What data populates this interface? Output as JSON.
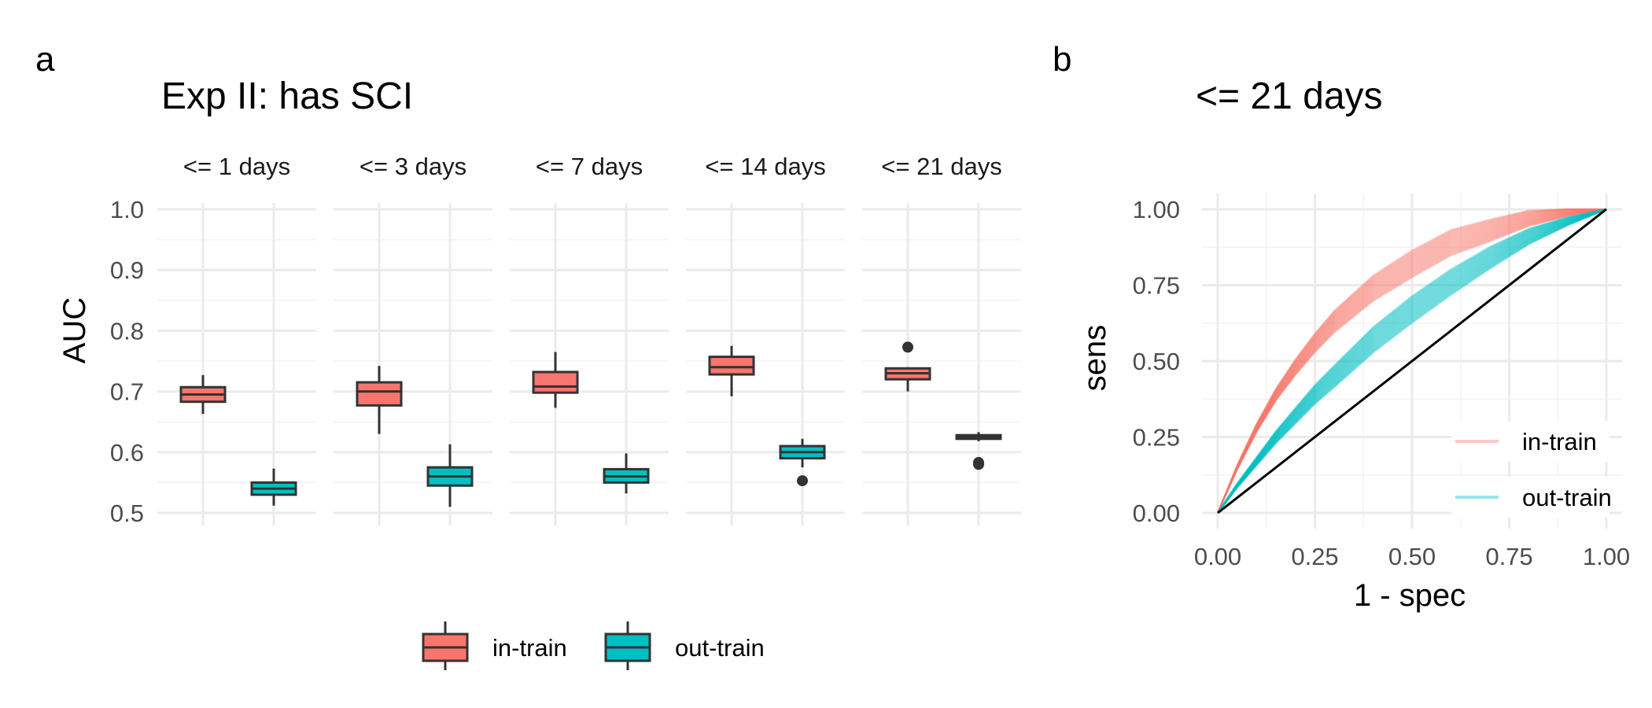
{
  "panel_a": {
    "tag": "a",
    "title": "Exp II: has SCI",
    "ylabel": "AUC",
    "yticks": [
      "0.5",
      "0.6",
      "0.7",
      "0.8",
      "0.9",
      "1.0"
    ],
    "legend": {
      "items": [
        {
          "label": "in-train",
          "color": "#F8766D"
        },
        {
          "label": "out-train",
          "color": "#00BFC4"
        }
      ]
    }
  },
  "panel_b": {
    "tag": "b",
    "title": "<= 21 days",
    "xlabel": "1 - spec",
    "ylabel": "sens",
    "xticks": [
      "0.00",
      "0.25",
      "0.50",
      "0.75",
      "1.00"
    ],
    "yticks": [
      "0.00",
      "0.25",
      "0.50",
      "0.75",
      "1.00"
    ],
    "legend": {
      "items": [
        {
          "label": "in-train",
          "color": "#F8766D"
        },
        {
          "label": "out-train",
          "color": "#00BFC4"
        }
      ]
    }
  },
  "chart_data": [
    {
      "type": "box",
      "title": "Exp II: has SCI",
      "xlabel": "",
      "ylabel": "AUC",
      "ylim": [
        0.5,
        1.0
      ],
      "facets": [
        "<= 1 days",
        "<= 3 days",
        "<= 7 days",
        "<= 14 days",
        "<= 21 days"
      ],
      "series": [
        {
          "name": "in-train",
          "color": "#F8766D",
          "boxes": [
            {
              "facet": "<= 1 days",
              "whisker_low": 0.663,
              "q1": 0.683,
              "median": 0.695,
              "q3": 0.707,
              "whisker_high": 0.727,
              "outliers": []
            },
            {
              "facet": "<= 3 days",
              "whisker_low": 0.63,
              "q1": 0.677,
              "median": 0.7,
              "q3": 0.715,
              "whisker_high": 0.742,
              "outliers": []
            },
            {
              "facet": "<= 7 days",
              "whisker_low": 0.673,
              "q1": 0.698,
              "median": 0.708,
              "q3": 0.732,
              "whisker_high": 0.765,
              "outliers": []
            },
            {
              "facet": "<= 14 days",
              "whisker_low": 0.692,
              "q1": 0.728,
              "median": 0.74,
              "q3": 0.757,
              "whisker_high": 0.775,
              "outliers": []
            },
            {
              "facet": "<= 21 days",
              "whisker_low": 0.7,
              "q1": 0.72,
              "median": 0.73,
              "q3": 0.738,
              "whisker_high": 0.74,
              "outliers": [
                0.773
              ]
            }
          ]
        },
        {
          "name": "out-train",
          "color": "#00BFC4",
          "boxes": [
            {
              "facet": "<= 1 days",
              "whisker_low": 0.512,
              "q1": 0.53,
              "median": 0.54,
              "q3": 0.55,
              "whisker_high": 0.573,
              "outliers": []
            },
            {
              "facet": "<= 3 days",
              "whisker_low": 0.51,
              "q1": 0.545,
              "median": 0.56,
              "q3": 0.575,
              "whisker_high": 0.613,
              "outliers": []
            },
            {
              "facet": "<= 7 days",
              "whisker_low": 0.532,
              "q1": 0.55,
              "median": 0.56,
              "q3": 0.572,
              "whisker_high": 0.598,
              "outliers": []
            },
            {
              "facet": "<= 14 days",
              "whisker_low": 0.575,
              "q1": 0.59,
              "median": 0.6,
              "q3": 0.61,
              "whisker_high": 0.622,
              "outliers": [
                0.553
              ]
            },
            {
              "facet": "<= 21 days",
              "whisker_low": 0.618,
              "q1": 0.622,
              "median": 0.625,
              "q3": 0.628,
              "whisker_high": 0.633,
              "outliers": [
                0.58,
                0.583
              ]
            }
          ]
        }
      ],
      "legend_position": "bottom",
      "grid": true
    },
    {
      "type": "line",
      "title": "<= 21 days",
      "xlabel": "1 - spec",
      "ylabel": "sens",
      "xlim": [
        0,
        1
      ],
      "ylim": [
        0,
        1
      ],
      "reference_line": {
        "x": [
          0,
          1
        ],
        "y": [
          0,
          1
        ],
        "color": "#000000"
      },
      "series": [
        {
          "name": "in-train",
          "color": "#F8766D",
          "curve_count": 40,
          "x": [
            0,
            0.05,
            0.1,
            0.15,
            0.2,
            0.25,
            0.3,
            0.4,
            0.5,
            0.6,
            0.7,
            0.8,
            0.9,
            1.0
          ],
          "y": [
            0,
            0.15,
            0.28,
            0.39,
            0.48,
            0.56,
            0.63,
            0.74,
            0.82,
            0.89,
            0.93,
            0.97,
            0.99,
            1.0
          ]
        },
        {
          "name": "out-train",
          "color": "#00BFC4",
          "curve_count": 40,
          "x": [
            0,
            0.05,
            0.1,
            0.15,
            0.2,
            0.25,
            0.3,
            0.4,
            0.5,
            0.6,
            0.7,
            0.8,
            0.9,
            1.0
          ],
          "y": [
            0,
            0.09,
            0.17,
            0.25,
            0.32,
            0.39,
            0.45,
            0.57,
            0.67,
            0.76,
            0.84,
            0.91,
            0.96,
            1.0
          ]
        }
      ],
      "legend_position": "bottom-right",
      "grid": true
    }
  ]
}
